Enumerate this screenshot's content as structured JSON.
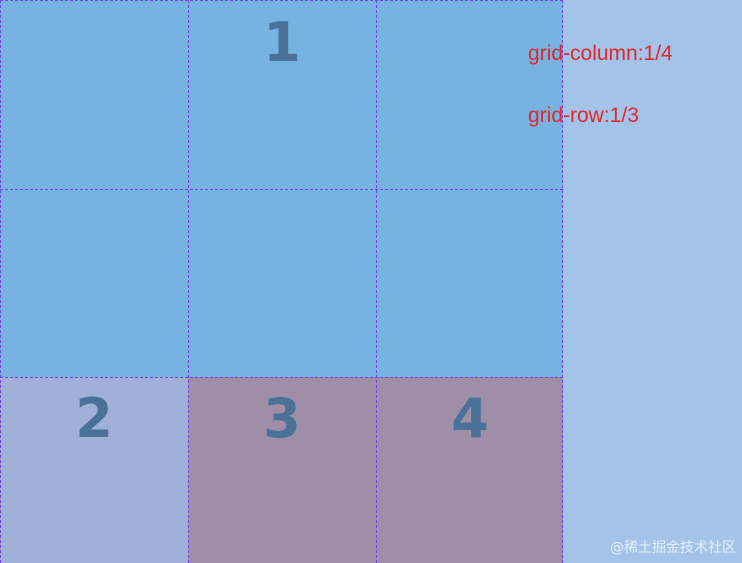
{
  "items": [
    {
      "label": "1",
      "color": "#77b3e0"
    },
    {
      "label": "2",
      "color": "#a0b0d8"
    },
    {
      "label": "3",
      "color": "#9f8ea8"
    },
    {
      "label": "4",
      "color": "#9f8ea8"
    }
  ],
  "annotations": {
    "column": "grid-column:1/4",
    "row": "grid-row:1/3"
  },
  "watermark": "@稀土掘金技术社区",
  "colors": {
    "container": "#a3c4e8",
    "grid_lines": "#7a3fe0",
    "annotation_text": "#e3262b",
    "number_text": "#4a7198"
  }
}
